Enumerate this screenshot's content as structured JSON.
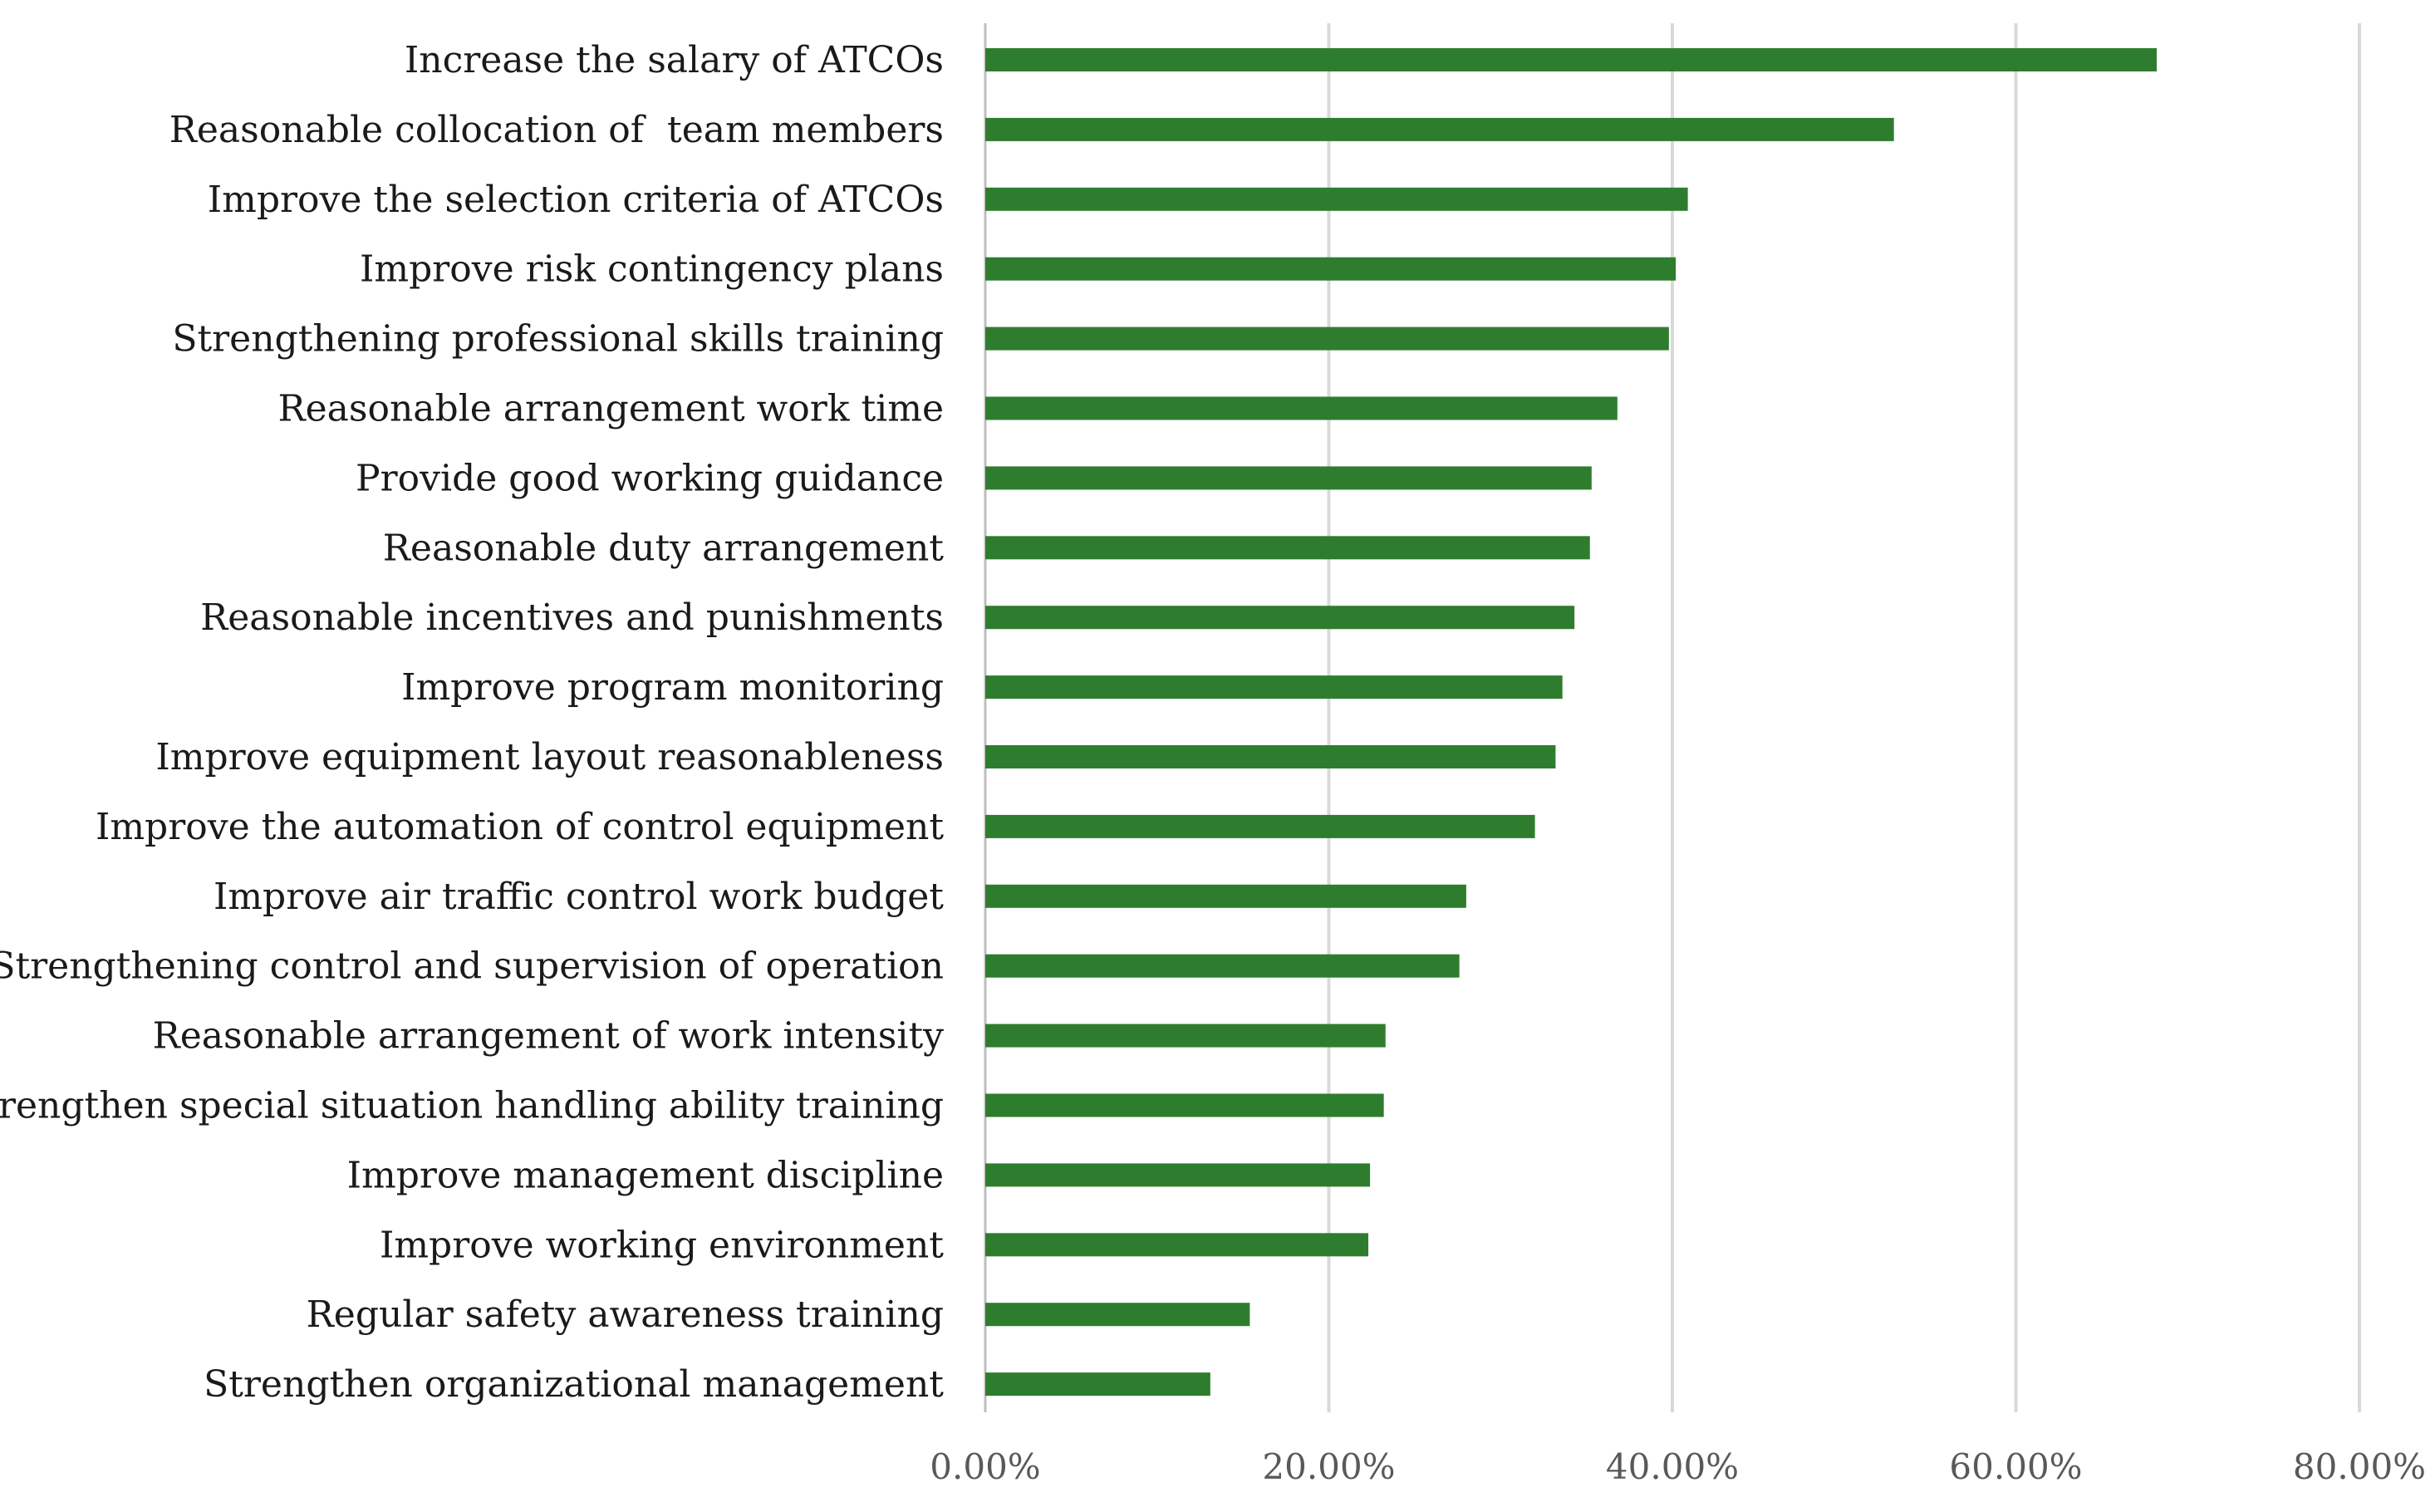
{
  "chart_data": {
    "type": "bar",
    "orientation": "horizontal",
    "title": "",
    "xlabel": "",
    "ylabel": "",
    "xlim": [
      0,
      80
    ],
    "grid": true,
    "bar_color": "#2e7d2e",
    "grid_color": "#d9d9d9",
    "ticks": [
      "0.00%",
      "20.00%",
      "40.00%",
      "60.00%",
      "80.00%"
    ],
    "tick_values": [
      0,
      20,
      40,
      60,
      80
    ],
    "categories": [
      "Increase the salary of ATCOs",
      "Reasonable collocation of  team members",
      "Improve the selection criteria of ATCOs",
      "Improve risk contingency plans",
      "Strengthening professional skills training",
      "Reasonable arrangement work time",
      "Provide good working guidance",
      "Reasonable duty arrangement",
      "Reasonable incentives and punishments",
      "Improve program monitoring",
      "Improve equipment layout reasonableness",
      "Improve the automation of control equipment",
      "Improve air traffic control work budget",
      "Strengthening control and supervision of operation",
      "Reasonable arrangement of work intensity",
      "Strengthen special situation handling ability training",
      "Improve management discipline",
      "Improve working environment",
      "Regular safety awareness training",
      "Strengthen organizational management"
    ],
    "values": [
      68.2,
      52.9,
      40.9,
      40.2,
      39.8,
      36.8,
      35.3,
      35.2,
      34.3,
      33.6,
      33.2,
      32.0,
      28.0,
      27.6,
      23.3,
      23.2,
      22.4,
      22.3,
      15.4,
      13.1
    ]
  }
}
